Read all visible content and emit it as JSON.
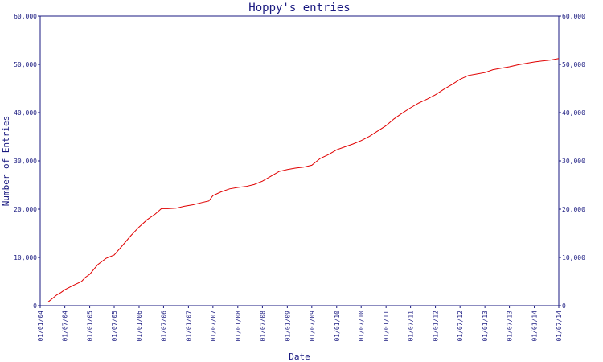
{
  "chart_data": {
    "type": "line",
    "title": "Hoppy's entries",
    "xlabel": "Date",
    "ylabel": "Number of Entries",
    "x_tick_labels": [
      "01/01/04",
      "01/07/04",
      "01/01/05",
      "01/07/05",
      "01/01/06",
      "01/07/06",
      "01/01/07",
      "01/07/07",
      "01/01/08",
      "01/07/08",
      "01/01/09",
      "01/07/09",
      "01/01/10",
      "01/07/10",
      "01/01/11",
      "01/07/11",
      "01/01/12",
      "01/07/12",
      "01/01/13",
      "01/07/13",
      "01/01/14",
      "01/07/14"
    ],
    "xlim": [
      "2004-01-01",
      "2014-07-01"
    ],
    "ylim": [
      0,
      60000
    ],
    "y_ticks": [
      0,
      10000,
      20000,
      30000,
      40000,
      50000,
      60000
    ],
    "y_tick_labels": [
      "0",
      "10,000",
      "20,000",
      "30,000",
      "40,000",
      "50,000",
      "60,000"
    ],
    "y_axis_sides": "left-and-right",
    "grid": false,
    "legend": "none",
    "line_color": "#e00000",
    "axis_color": "#1a1a80",
    "series": [
      {
        "x": [
          "2004-03-01",
          "2004-04-01",
          "2004-05-01",
          "2004-06-01",
          "2004-07-01",
          "2004-09-01",
          "2004-11-01",
          "2004-12-01",
          "2005-01-01",
          "2005-03-01",
          "2005-05-01",
          "2005-07-01",
          "2005-09-01",
          "2005-11-01",
          "2006-01-01",
          "2006-03-01",
          "2006-05-01",
          "2006-06-15",
          "2006-08-01",
          "2006-10-01",
          "2006-12-01",
          "2007-02-01",
          "2007-04-01",
          "2007-06-01",
          "2007-07-01",
          "2007-09-01",
          "2007-11-01",
          "2008-01-01",
          "2008-03-01",
          "2008-05-01",
          "2008-07-01",
          "2008-09-01",
          "2008-11-01",
          "2009-01-01",
          "2009-03-01",
          "2009-05-01",
          "2009-07-01",
          "2009-09-01",
          "2009-11-01",
          "2010-01-01",
          "2010-03-01",
          "2010-05-01",
          "2010-07-01",
          "2010-09-01",
          "2010-11-01",
          "2011-01-01",
          "2011-03-01",
          "2011-05-01",
          "2011-07-01",
          "2011-09-01",
          "2011-11-01",
          "2012-01-01",
          "2012-03-01",
          "2012-05-01",
          "2012-07-01",
          "2012-09-01",
          "2012-11-01",
          "2013-01-01",
          "2013-03-01",
          "2013-05-01",
          "2013-07-01",
          "2013-09-01",
          "2013-11-01",
          "2014-01-01",
          "2014-03-01",
          "2014-05-01",
          "2014-07-01"
        ],
        "y": [
          800,
          1500,
          2200,
          2700,
          3300,
          4200,
          5000,
          5900,
          6500,
          8500,
          9800,
          10500,
          12500,
          14500,
          16300,
          17800,
          19000,
          20100,
          20100,
          20200,
          20600,
          20900,
          21300,
          21700,
          22800,
          23600,
          24200,
          24500,
          24700,
          25100,
          25800,
          26800,
          27800,
          28200,
          28500,
          28700,
          29100,
          30500,
          31300,
          32300,
          32900,
          33500,
          34200,
          35100,
          36200,
          37300,
          38700,
          39900,
          41000,
          42000,
          42800,
          43700,
          44800,
          45800,
          46900,
          47700,
          48000,
          48300,
          48900,
          49200,
          49500,
          49900,
          50200,
          50500,
          50700,
          50900,
          51200
        ]
      }
    ]
  }
}
